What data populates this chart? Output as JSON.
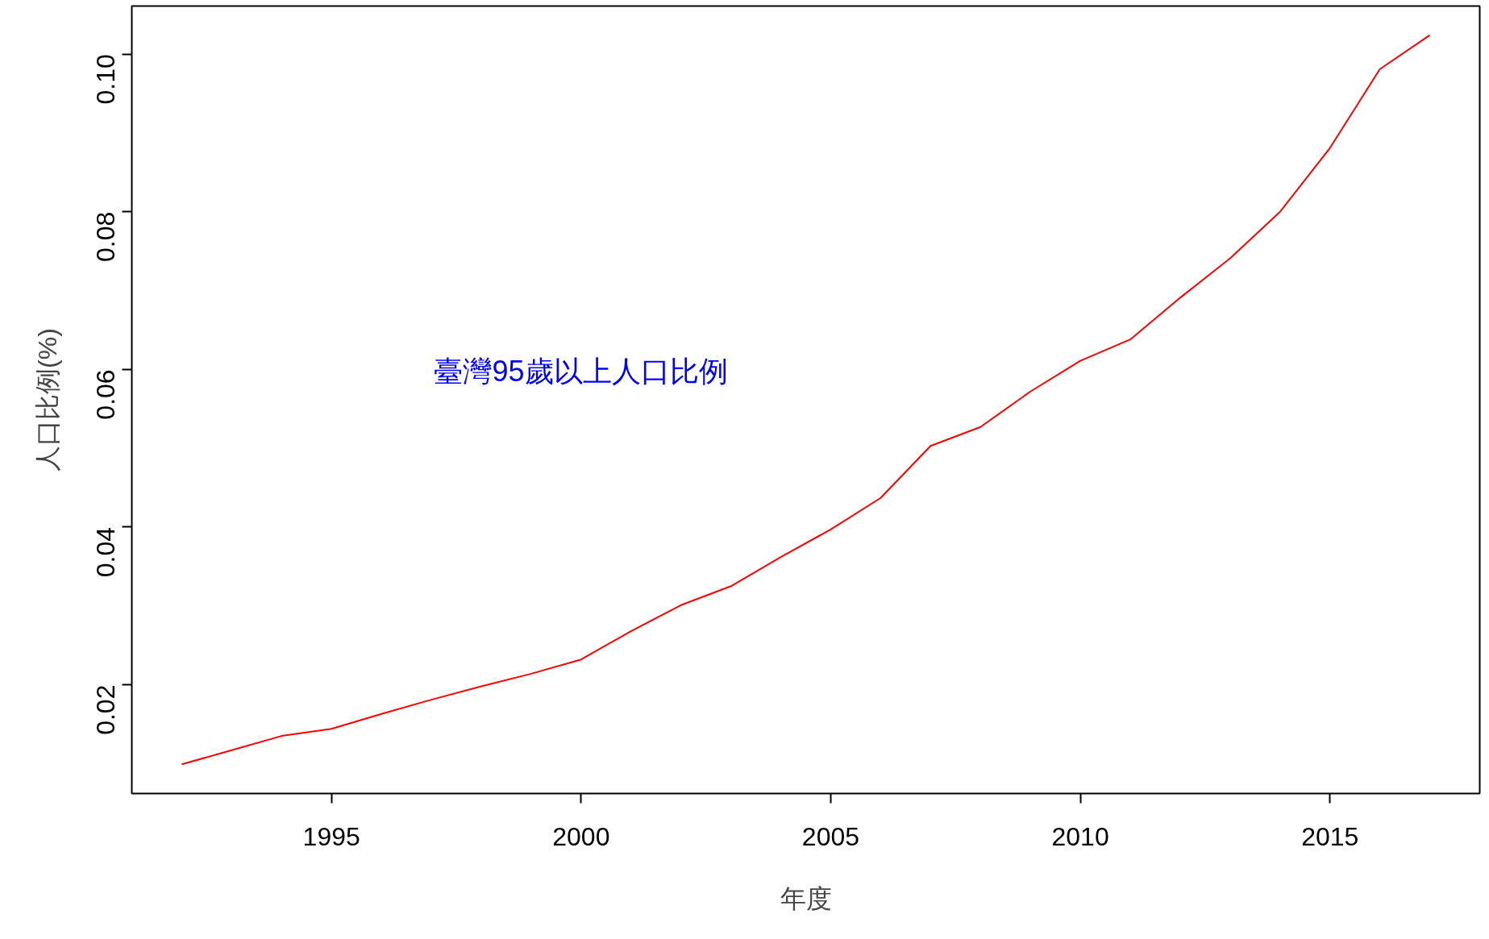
{
  "chart_data": {
    "type": "line",
    "xlabel": "年度",
    "ylabel": "人口比例(%)",
    "x": [
      1992,
      1993,
      1994,
      1995,
      1996,
      1997,
      1998,
      1999,
      2000,
      2001,
      2002,
      2003,
      2004,
      2005,
      2006,
      2007,
      2008,
      2009,
      2010,
      2011,
      2012,
      2013,
      2014,
      2015,
      2016,
      2017
    ],
    "series": [
      {
        "color": "#ff0000",
        "values": [
          0.0099,
          0.0117,
          0.0135,
          0.0144,
          0.0163,
          0.0181,
          0.0198,
          0.0214,
          0.0232,
          0.0268,
          0.0301,
          0.0325,
          0.0362,
          0.0397,
          0.0437,
          0.0503,
          0.0527,
          0.0572,
          0.0611,
          0.0638,
          0.0691,
          0.0741,
          0.08,
          0.0881,
          0.0981,
          0.1024
        ]
      }
    ],
    "xlim": [
      1991,
      2018
    ],
    "ylim": [
      0.0062,
      0.1061
    ],
    "xticks": [
      1995,
      2000,
      2005,
      2010,
      2015
    ],
    "yticks": [
      {
        "value": 0.02,
        "label": "0.02"
      },
      {
        "value": 0.04,
        "label": "0.04"
      },
      {
        "value": 0.06,
        "label": "0.06"
      },
      {
        "value": 0.08,
        "label": "0.08"
      },
      {
        "value": 0.1,
        "label": "0.10"
      }
    ],
    "annotations": [
      "臺灣95歲以上人口比例"
    ],
    "grid": false,
    "marker": "none",
    "line_style": "solid"
  }
}
